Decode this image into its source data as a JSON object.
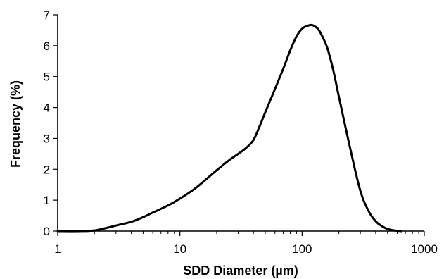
{
  "chart_data": {
    "type": "line",
    "title": "",
    "xlabel": "SDD Diameter (µm)",
    "ylabel": "Frequency (%)",
    "x_scale": "log",
    "xlim": [
      1,
      1000
    ],
    "ylim": [
      0,
      7
    ],
    "x_ticks": [
      1,
      10,
      100,
      1000
    ],
    "x_tick_labels": [
      "1",
      "10",
      "100",
      "1000"
    ],
    "y_ticks": [
      0,
      1,
      2,
      3,
      4,
      5,
      6,
      7
    ],
    "y_tick_labels": [
      "0",
      "1",
      "2",
      "3",
      "4",
      "5",
      "6",
      "7"
    ],
    "grid": false,
    "legend": "none",
    "line_color": "#000000",
    "series": [
      {
        "x": [
          1,
          1.5,
          2,
          2.5,
          3,
          4,
          5,
          6,
          8,
          10,
          13,
          16,
          20,
          25,
          30,
          35,
          40,
          45,
          50,
          60,
          70,
          80,
          90,
          100,
          110,
          120,
          130,
          140,
          160,
          180,
          200,
          250,
          300,
          350,
          400,
          450,
          500,
          550,
          600,
          650
        ],
        "y": [
          0,
          0,
          0.02,
          0.1,
          0.18,
          0.3,
          0.45,
          0.6,
          0.83,
          1.05,
          1.35,
          1.64,
          1.97,
          2.28,
          2.5,
          2.7,
          2.95,
          3.4,
          3.85,
          4.6,
          5.25,
          5.85,
          6.3,
          6.55,
          6.64,
          6.67,
          6.6,
          6.45,
          5.95,
          5.2,
          4.35,
          2.6,
          1.3,
          0.65,
          0.32,
          0.16,
          0.07,
          0.03,
          0.01,
          0
        ]
      }
    ]
  }
}
